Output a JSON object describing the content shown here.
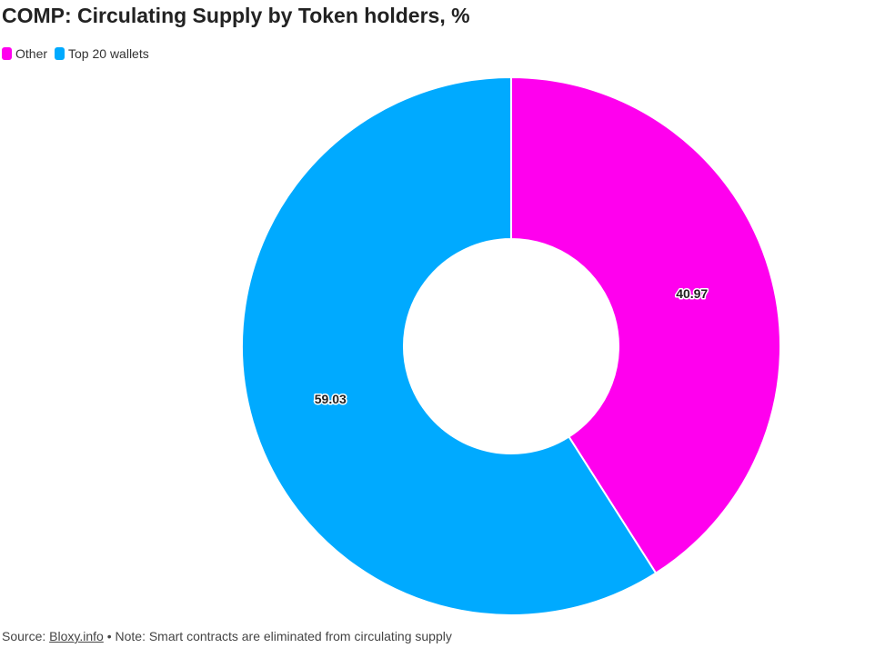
{
  "chart_data": {
    "type": "pie",
    "variant": "donut",
    "title": "COMP: Circulating Supply by Token holders, %",
    "categories": [
      "Other",
      "Top 20 wallets"
    ],
    "values": [
      40.97,
      59.03
    ],
    "colors": [
      "#ff00ee",
      "#00aaff"
    ],
    "legend": {
      "placement": "top-left",
      "items": [
        {
          "label": "Other",
          "color": "#ff00ee"
        },
        {
          "label": "Top 20 wallets",
          "color": "#00aaff"
        }
      ]
    },
    "data_labels": [
      "40.97",
      "59.03"
    ],
    "start": "top",
    "direction": "clockwise"
  },
  "footer": {
    "source_prefix": "Source: ",
    "source_link": "Bloxy.info",
    "note": " • Note: Smart contracts are eliminated from circulating supply"
  }
}
